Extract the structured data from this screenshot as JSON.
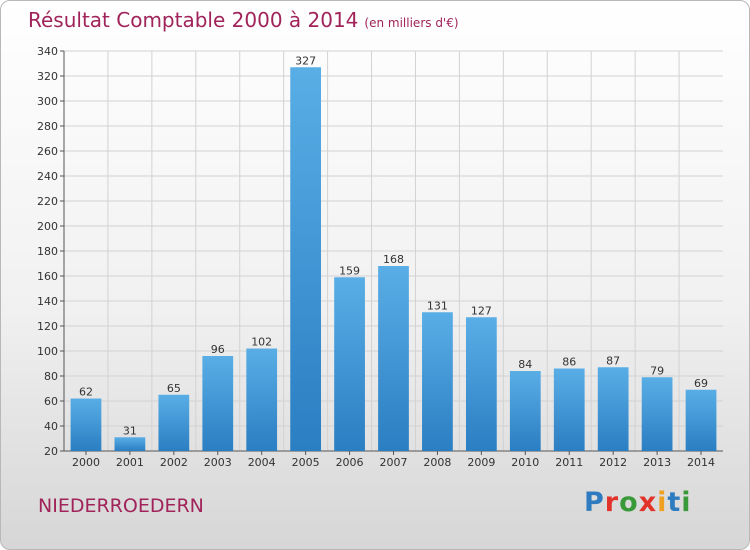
{
  "chart_data": {
    "type": "bar",
    "title": "Résultat Comptable 2000 à 2014",
    "subtitle": "(en milliers d'€)",
    "categories": [
      "2000",
      "2001",
      "2002",
      "2003",
      "2004",
      "2005",
      "2006",
      "2007",
      "2008",
      "2009",
      "2010",
      "2011",
      "2012",
      "2013",
      "2014"
    ],
    "values": [
      62,
      31,
      65,
      96,
      102,
      327,
      159,
      168,
      131,
      127,
      84,
      86,
      87,
      79,
      69
    ],
    "ylim": [
      20,
      340
    ],
    "yticks": [
      20,
      40,
      60,
      80,
      100,
      120,
      140,
      160,
      180,
      200,
      220,
      240,
      260,
      280,
      300,
      320,
      340
    ],
    "grid": true,
    "bar_color_top": "#5aaee6",
    "bar_color_bottom": "#2a7ec2",
    "data_labels": true
  },
  "footer": {
    "commune": "NIEDERROEDERN"
  },
  "logo": {
    "text": "Proxiti",
    "letter_colors": [
      "#2e7bbf",
      "#e2332a",
      "#3a9a3a",
      "#e2332a",
      "#f0a020",
      "#2e7bbf",
      "#3a9a3a"
    ]
  }
}
